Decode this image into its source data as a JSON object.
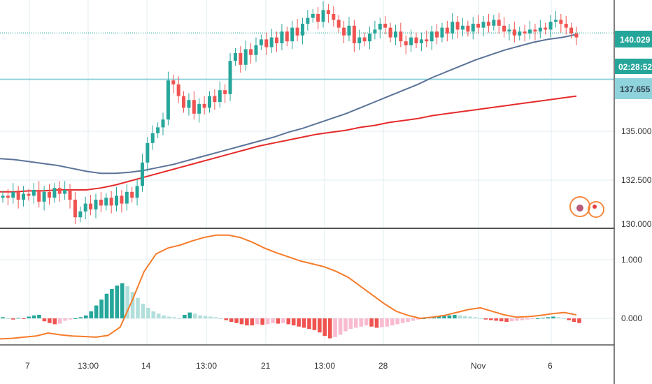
{
  "chart_data": [
    {
      "type": "candlestick",
      "title": "",
      "x_tick_labels": [
        "7",
        "13:00",
        "14",
        "13:00",
        "21",
        "13:00",
        "28",
        "Nov",
        "6"
      ],
      "y_tick_labels": [
        "135.000",
        "132.500",
        "130.000"
      ],
      "ylim": [
        129.9,
        141.6
      ],
      "grid": true,
      "price_levels": {
        "last_price": "140.029",
        "countdown": "02:28:52",
        "horizontal_line": "137.655"
      },
      "colors": {
        "up": "#26a69a",
        "down": "#ef5350",
        "ma_fast": "#5b7399",
        "ma_slow": "#e52b2b",
        "hline": "#8fd3dc",
        "last_line": "#26a69a"
      },
      "candles_close": [
        131.7,
        131.6,
        131.9,
        131.5,
        131.8,
        131.7,
        132.0,
        131.4,
        131.9,
        131.6,
        132.1,
        131.8,
        132.0,
        131.5,
        130.6,
        130.9,
        131.3,
        131.0,
        131.5,
        131.2,
        131.6,
        131.2,
        131.7,
        131.3,
        131.9,
        131.6,
        132.2,
        133.4,
        134.4,
        134.9,
        135.2,
        135.6,
        137.6,
        137.4,
        136.8,
        136.2,
        136.6,
        135.9,
        136.4,
        136.2,
        136.8,
        136.5,
        137.1,
        136.9,
        138.6,
        139.0,
        138.4,
        139.2,
        138.9,
        139.4,
        139.7,
        139.3,
        139.8,
        139.5,
        140.1,
        139.6,
        140.3,
        139.9,
        140.5,
        140.8,
        141.0,
        140.6,
        141.2,
        141.0,
        140.7,
        140.3,
        139.9,
        140.4,
        139.5,
        139.8,
        139.6,
        140.0,
        140.2,
        140.5,
        140.3,
        139.8,
        140.1,
        139.6,
        139.4,
        139.8,
        139.5,
        139.7,
        139.6,
        140.1,
        139.8,
        140.3,
        140.0,
        140.6,
        140.2,
        140.4,
        140.1,
        140.5,
        140.3,
        140.6,
        140.4,
        140.7,
        140.4,
        140.1,
        140.2,
        139.9,
        140.1,
        140.0,
        140.2,
        140.1,
        140.3,
        140.2,
        140.6,
        140.7,
        140.5,
        140.3,
        140.0,
        139.8
      ],
      "series": [
        {
          "name": "",
          "values": [
            133.6,
            133.55,
            133.45,
            133.35,
            133.25,
            133.1,
            132.95,
            132.85,
            132.85,
            132.9,
            133.0,
            133.15,
            133.3,
            133.5,
            133.7,
            133.9,
            134.1,
            134.3,
            134.5,
            134.7,
            134.95,
            135.15,
            135.4,
            135.65,
            135.9,
            136.2,
            136.5,
            136.8,
            137.1,
            137.4,
            137.75,
            138.05,
            138.35,
            138.65,
            138.9,
            139.15,
            139.35,
            139.55,
            139.7,
            139.8,
            139.95
          ]
        },
        {
          "name": "",
          "values": [
            131.9,
            131.9,
            131.95,
            131.95,
            132.0,
            132.0,
            132.0,
            132.1,
            132.25,
            132.45,
            132.65,
            132.85,
            133.05,
            133.25,
            133.45,
            133.65,
            133.85,
            134.05,
            134.25,
            134.4,
            134.55,
            134.7,
            134.85,
            134.95,
            135.05,
            135.2,
            135.3,
            135.45,
            135.55,
            135.65,
            135.8,
            135.9,
            136.0,
            136.1,
            136.2,
            136.3,
            136.4,
            136.5,
            136.6,
            136.7,
            136.8
          ]
        }
      ]
    },
    {
      "type": "macd",
      "y_tick_labels": [
        "1.000",
        "0.000"
      ],
      "ylim": [
        -0.42,
        1.55
      ],
      "colors": {
        "signal": "#f57c2b",
        "hist_up_strong": "#26a69a",
        "hist_up_weak": "#b2dfdb",
        "hist_down_strong": "#ef5350",
        "hist_down_weak": "#f8bbd0"
      },
      "signal_line": [
        -0.35,
        -0.34,
        -0.32,
        -0.3,
        -0.25,
        -0.28,
        -0.3,
        -0.31,
        -0.32,
        -0.29,
        -0.15,
        0.3,
        0.8,
        1.1,
        1.2,
        1.25,
        1.32,
        1.38,
        1.42,
        1.42,
        1.38,
        1.3,
        1.2,
        1.12,
        1.05,
        0.98,
        0.93,
        0.88,
        0.8,
        0.7,
        0.55,
        0.4,
        0.25,
        0.12,
        0.05,
        0.0,
        0.02,
        0.05,
        0.1,
        0.15,
        0.18,
        0.12,
        0.06,
        0.02,
        0.03,
        0.05,
        0.08,
        0.1,
        0.06
      ],
      "histogram": [
        0.02,
        0.0,
        -0.02,
        0.01,
        -0.01,
        0.03,
        0.05,
        0.06,
        -0.05,
        -0.08,
        -0.1,
        -0.09,
        -0.04,
        -0.02,
        0.0,
        0.02,
        0.05,
        0.12,
        0.22,
        0.32,
        0.42,
        0.5,
        0.56,
        0.6,
        0.55,
        0.45,
        0.35,
        0.25,
        0.18,
        0.12,
        0.08,
        0.05,
        0.03,
        0.02,
        0.0,
        0.06,
        0.1,
        0.08,
        0.05,
        0.04,
        0.03,
        0.02,
        0.0,
        -0.03,
        -0.06,
        -0.08,
        -0.1,
        -0.12,
        -0.12,
        -0.1,
        -0.11,
        -0.1,
        -0.08,
        -0.09,
        -0.08,
        -0.1,
        -0.12,
        -0.14,
        -0.16,
        -0.18,
        -0.2,
        -0.24,
        -0.3,
        -0.34,
        -0.32,
        -0.28,
        -0.22,
        -0.18,
        -0.16,
        -0.14,
        -0.12,
        -0.14,
        -0.16,
        -0.15,
        -0.14,
        -0.12,
        -0.1,
        -0.08,
        -0.06,
        -0.04,
        -0.02,
        0.0,
        0.02,
        0.03,
        0.04,
        0.05,
        0.05,
        0.06,
        0.05,
        0.04,
        0.03,
        0.02,
        0.0,
        -0.02,
        -0.03,
        -0.04,
        -0.05,
        -0.06,
        -0.05,
        -0.04,
        -0.03,
        -0.02,
        -0.01,
        0.0,
        0.01,
        0.02,
        0.03,
        0.02,
        0.0,
        -0.03,
        -0.06,
        -0.08
      ]
    }
  ]
}
